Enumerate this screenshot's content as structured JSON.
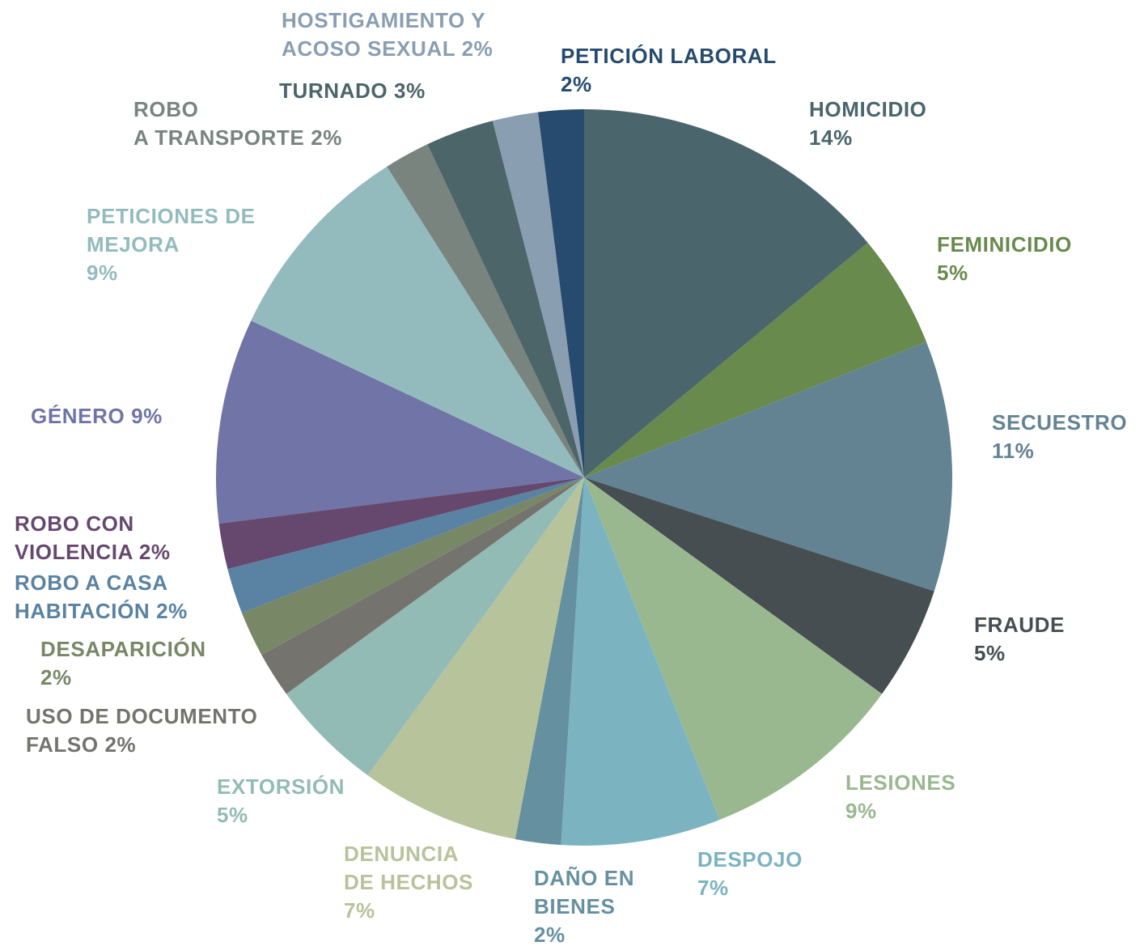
{
  "chart_data": {
    "type": "pie",
    "categories": [
      "HOMICIDIO",
      "FEMINICIDIO",
      "SECUESTRO",
      "FRAUDE",
      "LESIONES",
      "DESPOJO",
      "DAÑO EN\nBIENES",
      "DENUNCIA\nDE HECHOS",
      "EXTORSIÓN",
      "USO DE DOCUMENTO\nFALSO",
      "DESAPARICIÓN",
      "ROBO A CASA\nHABITACIÓN",
      "ROBO CON\nVIOLENCIA",
      "GÉNERO",
      "PETICIONES DE\nMEJORA",
      "ROBO\nA TRANSPORTE",
      "TURNADO",
      "HOSTIGAMIENTO Y\nACOSO SEXUAL",
      "PETICIÓN LABORAL"
    ],
    "values": [
      14,
      5,
      11,
      5,
      9,
      7,
      2,
      7,
      5,
      2,
      2,
      2,
      2,
      9,
      9,
      2,
      3,
      2,
      2
    ],
    "value_labels": [
      "14%",
      "5%",
      "11%",
      "5%",
      "9%",
      "7%",
      "2%",
      "7%",
      "5%",
      "2%",
      "2%",
      "2%",
      "2%",
      "9%",
      "9%",
      "2%",
      "3%",
      "2%",
      "2%"
    ],
    "colors": [
      "#4a666c",
      "#688a4d",
      "#638393",
      "#464e51",
      "#9ab890",
      "#7bb4c0",
      "#6590a0",
      "#b7c39a",
      "#93bbb6",
      "#74736e",
      "#788766",
      "#5a82a2",
      "#66486f",
      "#7074a6",
      "#93bbbe",
      "#79847f",
      "#4c6569",
      "#8a9eb2",
      "#264b6e"
    ]
  }
}
